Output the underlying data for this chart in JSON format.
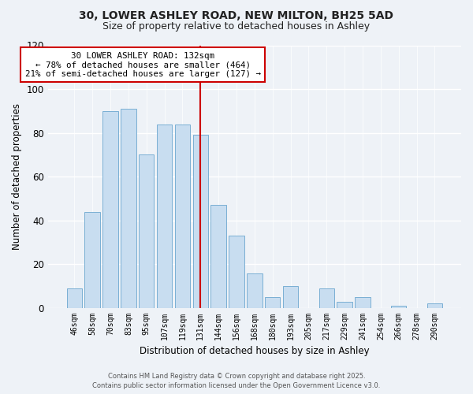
{
  "title": "30, LOWER ASHLEY ROAD, NEW MILTON, BH25 5AD",
  "subtitle": "Size of property relative to detached houses in Ashley",
  "xlabel": "Distribution of detached houses by size in Ashley",
  "ylabel": "Number of detached properties",
  "bar_color": "#c8ddf0",
  "bar_edge_color": "#7aafd4",
  "categories": [
    "46sqm",
    "58sqm",
    "70sqm",
    "83sqm",
    "95sqm",
    "107sqm",
    "119sqm",
    "131sqm",
    "144sqm",
    "156sqm",
    "168sqm",
    "180sqm",
    "193sqm",
    "205sqm",
    "217sqm",
    "229sqm",
    "241sqm",
    "254sqm",
    "266sqm",
    "278sqm",
    "290sqm"
  ],
  "values": [
    9,
    44,
    90,
    91,
    70,
    84,
    84,
    79,
    47,
    33,
    16,
    5,
    10,
    0,
    9,
    3,
    5,
    0,
    1,
    0,
    2
  ],
  "ylim": [
    0,
    120
  ],
  "yticks": [
    0,
    20,
    40,
    60,
    80,
    100,
    120
  ],
  "annotation_title": "30 LOWER ASHLEY ROAD: 132sqm",
  "annotation_line1": "← 78% of detached houses are smaller (464)",
  "annotation_line2": "21% of semi-detached houses are larger (127) →",
  "vline_x_index": 7,
  "vline_color": "#cc0000",
  "annotation_box_facecolor": "#ffffff",
  "annotation_box_edgecolor": "#cc0000",
  "footer1": "Contains HM Land Registry data © Crown copyright and database right 2025.",
  "footer2": "Contains public sector information licensed under the Open Government Licence v3.0.",
  "background_color": "#eef2f7",
  "grid_color": "#ffffff",
  "title_fontsize": 10,
  "subtitle_fontsize": 9
}
